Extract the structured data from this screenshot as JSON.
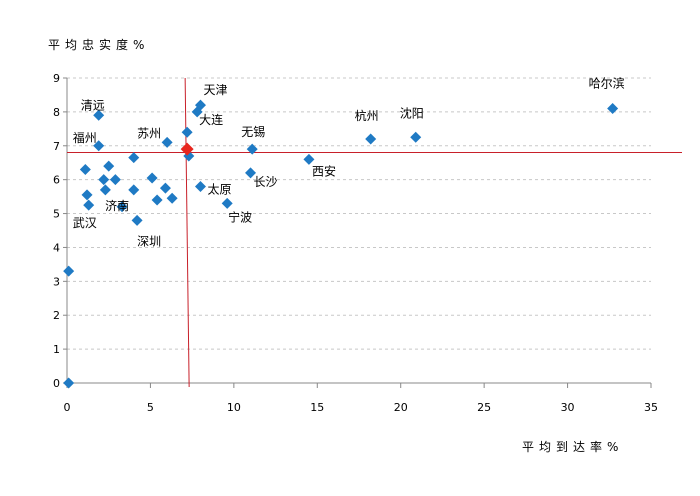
{
  "chart_data": {
    "type": "scatter",
    "title": "",
    "xlabel": "平均到达率%",
    "ylabel": "平均忠实度%",
    "xlim": [
      0,
      35
    ],
    "ylim": [
      0,
      9
    ],
    "xticks": [
      "0",
      "5",
      "10",
      "15",
      "20",
      "25",
      "30",
      "35"
    ],
    "yticks": [
      "0",
      "1",
      "2",
      "3",
      "4",
      "5",
      "6",
      "7",
      "8",
      "9"
    ],
    "grid": true,
    "marker_color": "#1f7ac4",
    "highlight_color": "#e8261e",
    "reference_line_color": "#c8202a",
    "reference_lines": {
      "x": 7.2,
      "y": 6.8
    },
    "highlight_point": {
      "x": 7.2,
      "y": 6.9
    },
    "points": [
      {
        "x": 0.1,
        "y": 0.0
      },
      {
        "x": 0.1,
        "y": 3.3
      },
      {
        "x": 1.1,
        "y": 6.3
      },
      {
        "x": 1.2,
        "y": 5.55
      },
      {
        "x": 1.3,
        "y": 5.25
      },
      {
        "x": 1.9,
        "y": 7.0
      },
      {
        "x": 1.9,
        "y": 7.9
      },
      {
        "x": 2.2,
        "y": 6.0
      },
      {
        "x": 2.3,
        "y": 5.7
      },
      {
        "x": 2.5,
        "y": 6.4
      },
      {
        "x": 2.9,
        "y": 6.0
      },
      {
        "x": 3.3,
        "y": 5.2
      },
      {
        "x": 4.0,
        "y": 6.65
      },
      {
        "x": 4.0,
        "y": 5.7
      },
      {
        "x": 4.2,
        "y": 4.8
      },
      {
        "x": 5.1,
        "y": 6.05
      },
      {
        "x": 5.4,
        "y": 5.4
      },
      {
        "x": 5.9,
        "y": 5.75
      },
      {
        "x": 6.0,
        "y": 7.1
      },
      {
        "x": 6.3,
        "y": 5.45
      },
      {
        "x": 7.2,
        "y": 7.4
      },
      {
        "x": 7.3,
        "y": 6.7
      },
      {
        "x": 7.8,
        "y": 8.0
      },
      {
        "x": 8.0,
        "y": 8.2
      },
      {
        "x": 8.0,
        "y": 5.8
      },
      {
        "x": 9.6,
        "y": 5.3
      },
      {
        "x": 11.0,
        "y": 6.2
      },
      {
        "x": 11.1,
        "y": 6.9
      },
      {
        "x": 14.5,
        "y": 6.6
      },
      {
        "x": 18.2,
        "y": 7.2
      },
      {
        "x": 20.9,
        "y": 7.25
      },
      {
        "x": 32.7,
        "y": 8.1
      }
    ],
    "labels": [
      {
        "text": "天津",
        "x": 8.0,
        "y": 8.2
      },
      {
        "text": "大连",
        "x": 7.8,
        "y": 8.0
      },
      {
        "text": "清远",
        "x": 1.9,
        "y": 7.9
      },
      {
        "text": "福州",
        "x": 1.9,
        "y": 7.0
      },
      {
        "text": "苏州",
        "x": 6.0,
        "y": 7.1
      },
      {
        "text": "无锡",
        "x": 11.1,
        "y": 6.9
      },
      {
        "text": "杭州",
        "x": 18.2,
        "y": 7.2
      },
      {
        "text": "沈阳",
        "x": 20.9,
        "y": 7.25
      },
      {
        "text": "哈尔滨",
        "x": 32.7,
        "y": 8.1
      },
      {
        "text": "西安",
        "x": 14.5,
        "y": 6.6
      },
      {
        "text": "长沙",
        "x": 11.0,
        "y": 6.2
      },
      {
        "text": "太原",
        "x": 8.0,
        "y": 5.8
      },
      {
        "text": "宁波",
        "x": 9.6,
        "y": 5.3
      },
      {
        "text": "济南",
        "x": 3.3,
        "y": 5.2
      },
      {
        "text": "武汉",
        "x": 1.3,
        "y": 5.25
      },
      {
        "text": "深圳",
        "x": 4.2,
        "y": 4.8
      }
    ]
  }
}
